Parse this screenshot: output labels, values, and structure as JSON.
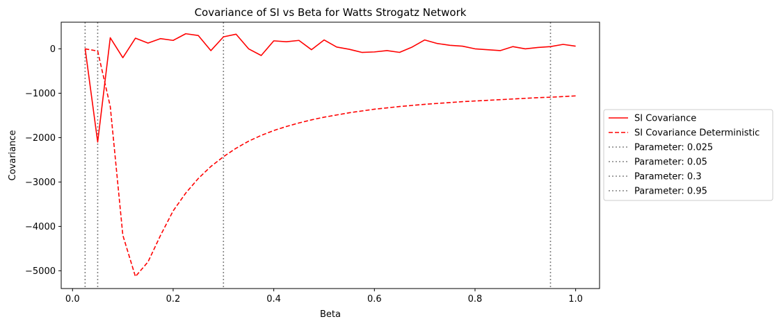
{
  "chart_data": {
    "type": "line",
    "title": "Covariance of SI vs Beta for Watts Strogatz Network",
    "xlabel": "Beta",
    "ylabel": "Covariance",
    "xlim": [
      -0.0225,
      1.0475
    ],
    "ylim": [
      -5400,
      600
    ],
    "xticks": [
      0.0,
      0.2,
      0.4,
      0.6,
      0.8,
      1.0
    ],
    "xtick_labels": [
      "0.0",
      "0.2",
      "0.4",
      "0.6",
      "0.8",
      "1.0"
    ],
    "yticks": [
      -5000,
      -4000,
      -3000,
      -2000,
      -1000,
      0
    ],
    "ytick_labels": [
      "−5000",
      "−4000",
      "−3000",
      "−2000",
      "−1000",
      "0"
    ],
    "grid": false,
    "legend_position": "center-right-outside",
    "series": [
      {
        "name": "SI Covariance",
        "style": "solid",
        "color": "#ff0000",
        "x": [
          0.025,
          0.05,
          0.075,
          0.1,
          0.125,
          0.15,
          0.175,
          0.2,
          0.225,
          0.25,
          0.275,
          0.3,
          0.325,
          0.35,
          0.375,
          0.4,
          0.425,
          0.45,
          0.475,
          0.5,
          0.525,
          0.55,
          0.575,
          0.6,
          0.625,
          0.65,
          0.675,
          0.7,
          0.725,
          0.75,
          0.775,
          0.8,
          0.825,
          0.85,
          0.875,
          0.9,
          0.925,
          0.95,
          0.975,
          1.0
        ],
        "values": [
          10,
          -2100,
          250,
          -200,
          240,
          130,
          230,
          190,
          340,
          300,
          -40,
          270,
          330,
          0,
          -150,
          180,
          160,
          190,
          -20,
          200,
          40,
          -10,
          -80,
          -70,
          -40,
          -80,
          40,
          200,
          120,
          80,
          60,
          0,
          -20,
          -40,
          50,
          0,
          30,
          50,
          100,
          60
        ]
      },
      {
        "name": "SI Covariance Deterministic",
        "style": "dashed",
        "color": "#ff0000",
        "x": [
          0.025,
          0.05,
          0.075,
          0.1,
          0.125,
          0.15,
          0.175,
          0.2,
          0.225,
          0.25,
          0.275,
          0.3,
          0.325,
          0.35,
          0.375,
          0.4,
          0.425,
          0.45,
          0.475,
          0.5,
          0.525,
          0.55,
          0.575,
          0.6,
          0.625,
          0.65,
          0.675,
          0.7,
          0.725,
          0.75,
          0.775,
          0.8,
          0.825,
          0.85,
          0.875,
          0.9,
          0.925,
          0.95,
          0.975,
          1.0
        ],
        "values": [
          0,
          -50,
          -1300,
          -4200,
          -5130,
          -4800,
          -4200,
          -3650,
          -3250,
          -2920,
          -2650,
          -2430,
          -2240,
          -2080,
          -1950,
          -1840,
          -1750,
          -1670,
          -1600,
          -1540,
          -1490,
          -1440,
          -1400,
          -1360,
          -1330,
          -1300,
          -1275,
          -1250,
          -1230,
          -1210,
          -1190,
          -1175,
          -1160,
          -1145,
          -1130,
          -1115,
          -1100,
          -1090,
          -1075,
          -1060
        ]
      }
    ],
    "vlines": [
      {
        "name": "Parameter: 0.025",
        "x": 0.025,
        "style": "dotted",
        "color": "#808080"
      },
      {
        "name": "Parameter: 0.05",
        "x": 0.05,
        "style": "dotted",
        "color": "#808080"
      },
      {
        "name": "Parameter: 0.3",
        "x": 0.3,
        "style": "dotted",
        "color": "#808080"
      },
      {
        "name": "Parameter: 0.95",
        "x": 0.95,
        "style": "dotted",
        "color": "#808080"
      }
    ]
  }
}
